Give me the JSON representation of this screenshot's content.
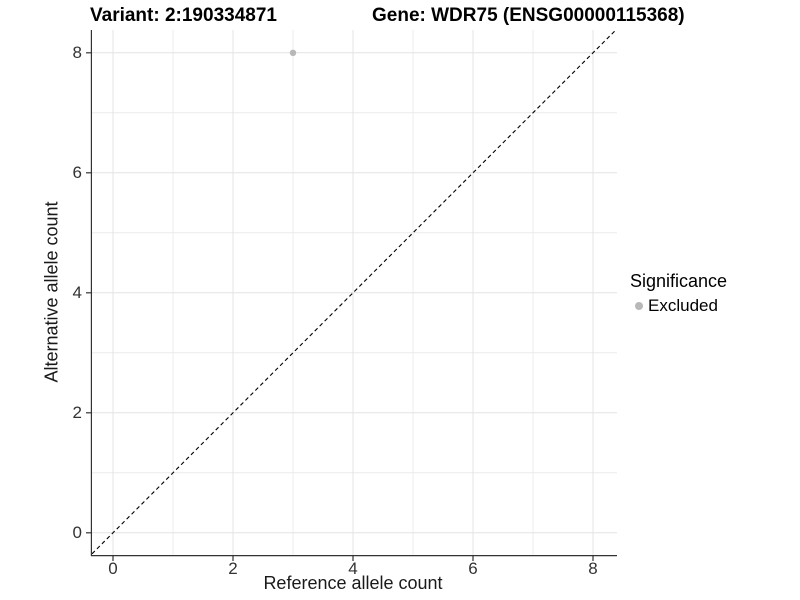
{
  "chart_data": {
    "type": "scatter",
    "title_left": "Variant: 2:190334871",
    "title_right": "Gene: WDR75 (ENSG00000115368)",
    "xlabel": "Reference allele count",
    "ylabel": "Alternative allele count",
    "x_ticks": [
      0,
      2,
      4,
      6,
      8
    ],
    "y_ticks": [
      0,
      2,
      4,
      6,
      8
    ],
    "x_minor_ticks": [
      1,
      3,
      5,
      7
    ],
    "y_minor_ticks": [
      1,
      3,
      5,
      7
    ],
    "xlim": [
      -0.35,
      8.4
    ],
    "ylim": [
      -0.37,
      8.38
    ],
    "grid": "on",
    "reference_line": {
      "slope": 1,
      "intercept": 0,
      "style": "dashed",
      "color": "#000000"
    },
    "series": [
      {
        "name": "Excluded",
        "color": "#b8b8b8",
        "points": [
          {
            "x": 3,
            "y": 8
          }
        ]
      }
    ],
    "legend": {
      "title": "Significance",
      "position": "right",
      "entries": [
        {
          "label": "Excluded",
          "color": "#b8b8b8"
        }
      ]
    },
    "colors": {
      "grid_major": "#e4e4e4",
      "grid_minor": "#ececec",
      "axis_line": "#333333",
      "tick_mark": "#333333",
      "background": "#ffffff"
    }
  }
}
